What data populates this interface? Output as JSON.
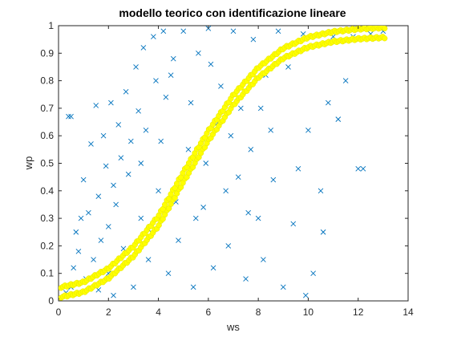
{
  "chart_data": {
    "type": "scatter",
    "title": "modello teorico con identificazione lineare",
    "xlabel": "ws",
    "ylabel": "wp",
    "xlim": [
      0,
      14
    ],
    "ylim": [
      0,
      1
    ],
    "xticks": [
      "0",
      "2",
      "4",
      "6",
      "8",
      "10",
      "12",
      "14"
    ],
    "yticks": [
      "0",
      "0.1",
      "0.2",
      "0.3",
      "0.4",
      "0.5",
      "0.6",
      "0.7",
      "0.8",
      "0.9",
      "1"
    ],
    "grid": false,
    "legend": false,
    "series": [
      {
        "marker": "x",
        "color": "#0072bd",
        "points": [
          [
            0.3,
            0.03
          ],
          [
            0.5,
            0.05
          ],
          [
            0.4,
            0.67
          ],
          [
            0.5,
            0.67
          ],
          [
            0.6,
            0.12
          ],
          [
            0.7,
            0.25
          ],
          [
            0.8,
            0.18
          ],
          [
            0.9,
            0.3
          ],
          [
            1.0,
            0.44
          ],
          [
            1.1,
            0.08
          ],
          [
            1.2,
            0.32
          ],
          [
            1.3,
            0.57
          ],
          [
            1.4,
            0.15
          ],
          [
            1.5,
            0.71
          ],
          [
            1.6,
            0.38
          ],
          [
            1.7,
            0.22
          ],
          [
            1.8,
            0.6
          ],
          [
            1.9,
            0.49
          ],
          [
            2.0,
            0.1
          ],
          [
            2.0,
            0.27
          ],
          [
            2.1,
            0.72
          ],
          [
            2.2,
            0.42
          ],
          [
            2.3,
            0.35
          ],
          [
            2.4,
            0.64
          ],
          [
            2.5,
            0.52
          ],
          [
            2.6,
            0.19
          ],
          [
            2.7,
            0.76
          ],
          [
            2.8,
            0.46
          ],
          [
            2.9,
            0.58
          ],
          [
            3.0,
            0.05
          ],
          [
            3.1,
            0.85
          ],
          [
            3.2,
            0.69
          ],
          [
            3.3,
            0.3
          ],
          [
            3.4,
            0.92
          ],
          [
            3.5,
            0.62
          ],
          [
            3.6,
            0.15
          ],
          [
            3.8,
            0.96
          ],
          [
            3.9,
            0.8
          ],
          [
            4.0,
            0.4
          ],
          [
            4.2,
            0.98
          ],
          [
            4.3,
            0.74
          ],
          [
            4.4,
            0.1
          ],
          [
            4.6,
            0.88
          ],
          [
            4.8,
            0.22
          ],
          [
            5.0,
            0.98
          ],
          [
            5.2,
            0.55
          ],
          [
            5.4,
            0.05
          ],
          [
            5.6,
            0.9
          ],
          [
            5.8,
            0.34
          ],
          [
            6.0,
            0.99
          ],
          [
            6.2,
            0.12
          ],
          [
            6.5,
            0.78
          ],
          [
            6.8,
            0.2
          ],
          [
            7.0,
            0.98
          ],
          [
            7.2,
            0.45
          ],
          [
            7.5,
            0.08
          ],
          [
            7.8,
            0.95
          ],
          [
            8.0,
            0.3
          ],
          [
            8.2,
            0.15
          ],
          [
            8.5,
            0.62
          ],
          [
            8.8,
            0.98
          ],
          [
            9.0,
            0.05
          ],
          [
            9.2,
            0.85
          ],
          [
            9.4,
            0.28
          ],
          [
            9.6,
            0.48
          ],
          [
            9.8,
            0.97
          ],
          [
            10.0,
            0.62
          ],
          [
            10.2,
            0.1
          ],
          [
            10.5,
            0.4
          ],
          [
            10.8,
            0.72
          ],
          [
            11.0,
            0.96
          ],
          [
            11.2,
            0.66
          ],
          [
            11.5,
            0.8
          ],
          [
            11.8,
            0.96
          ],
          [
            12.0,
            0.48
          ],
          [
            12.2,
            0.48
          ],
          [
            12.5,
            0.97
          ],
          [
            13.0,
            0.98
          ],
          [
            10.6,
            0.25
          ],
          [
            9.9,
            0.02
          ],
          [
            3.6,
            0.26
          ],
          [
            4.1,
            0.58
          ],
          [
            4.7,
            0.36
          ],
          [
            5.3,
            0.72
          ],
          [
            5.9,
            0.5
          ],
          [
            6.3,
            0.64
          ],
          [
            6.7,
            0.4
          ],
          [
            7.3,
            0.7
          ],
          [
            7.7,
            0.55
          ],
          [
            8.3,
            0.82
          ],
          [
            8.6,
            0.44
          ],
          [
            2.2,
            0.02
          ],
          [
            1.6,
            0.04
          ],
          [
            3.3,
            0.5
          ],
          [
            4.5,
            0.82
          ],
          [
            5.5,
            0.3
          ],
          [
            6.1,
            0.86
          ],
          [
            6.9,
            0.6
          ],
          [
            7.6,
            0.32
          ],
          [
            8.1,
            0.7
          ]
        ]
      },
      {
        "name": "",
        "marker": "o",
        "color": "#ffff00",
        "curve": [
          [
            0.0,
            0.03
          ],
          [
            1.0,
            0.05
          ],
          [
            2.0,
            0.1
          ],
          [
            3.0,
            0.18
          ],
          [
            4.0,
            0.29
          ],
          [
            5.0,
            0.45
          ],
          [
            6.0,
            0.6
          ],
          [
            7.0,
            0.73
          ],
          [
            8.0,
            0.83
          ],
          [
            9.0,
            0.9
          ],
          [
            10.0,
            0.94
          ],
          [
            11.0,
            0.96
          ],
          [
            12.0,
            0.97
          ],
          [
            13.0,
            0.975
          ]
        ]
      }
    ]
  }
}
